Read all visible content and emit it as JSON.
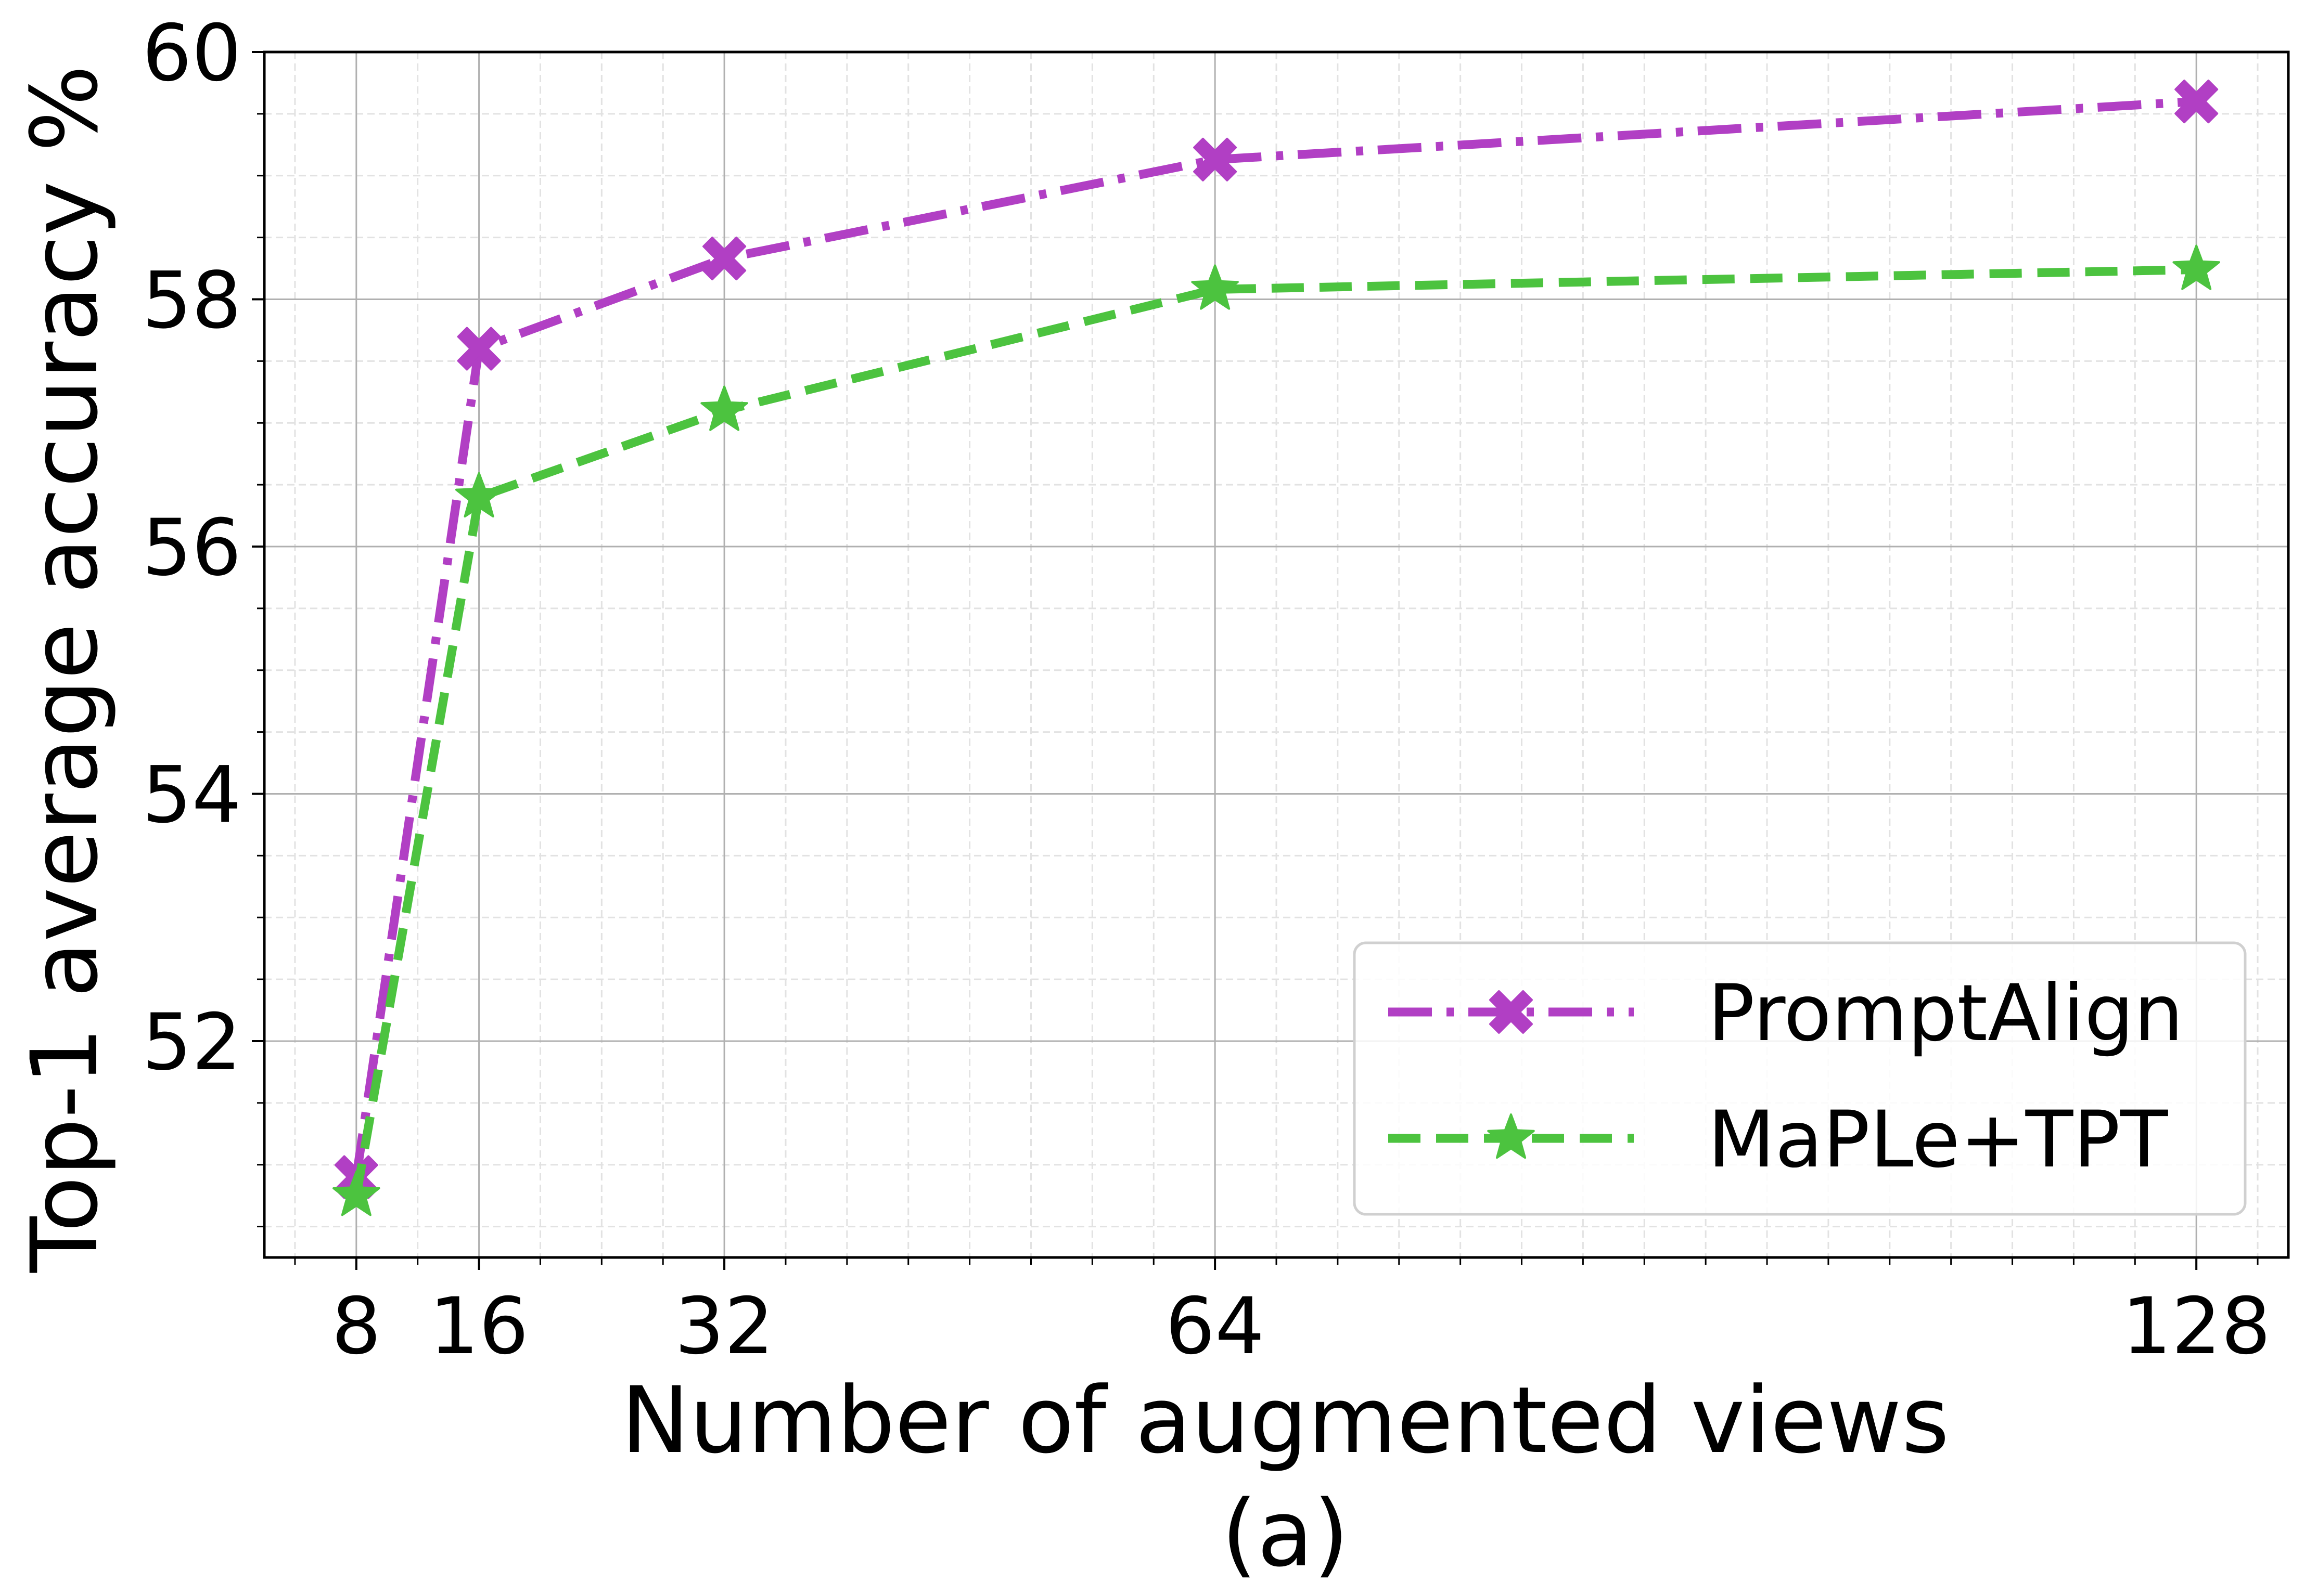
{
  "chart_data": {
    "type": "line",
    "title": "",
    "xlabel": "Number of augmented views",
    "caption": "(a)",
    "ylabel": "Top-1 average accuracy %",
    "x": [
      8,
      16,
      32,
      64,
      128
    ],
    "x_tick_labels": [
      "8",
      "16",
      "32",
      "64",
      "128"
    ],
    "xlim": [
      2,
      134
    ],
    "ylim": [
      50.25,
      60.0
    ],
    "y_ticks": [
      52,
      54,
      56,
      58,
      60
    ],
    "y_tick_labels": [
      "52",
      "54",
      "56",
      "58",
      "60"
    ],
    "grid": true,
    "minor_grid": true,
    "legend_position": "bottom-right",
    "series": [
      {
        "name": "PromptAlign",
        "values": [
          50.9,
          57.6,
          58.33,
          59.13,
          59.6
        ],
        "color": "#b13fc4",
        "line_style": "dash-dot",
        "marker": "X"
      },
      {
        "name": "MaPLe+TPT",
        "values": [
          50.75,
          56.4,
          57.1,
          58.08,
          58.24
        ],
        "color": "#4cc33f",
        "line_style": "dashed",
        "marker": "star"
      }
    ]
  }
}
